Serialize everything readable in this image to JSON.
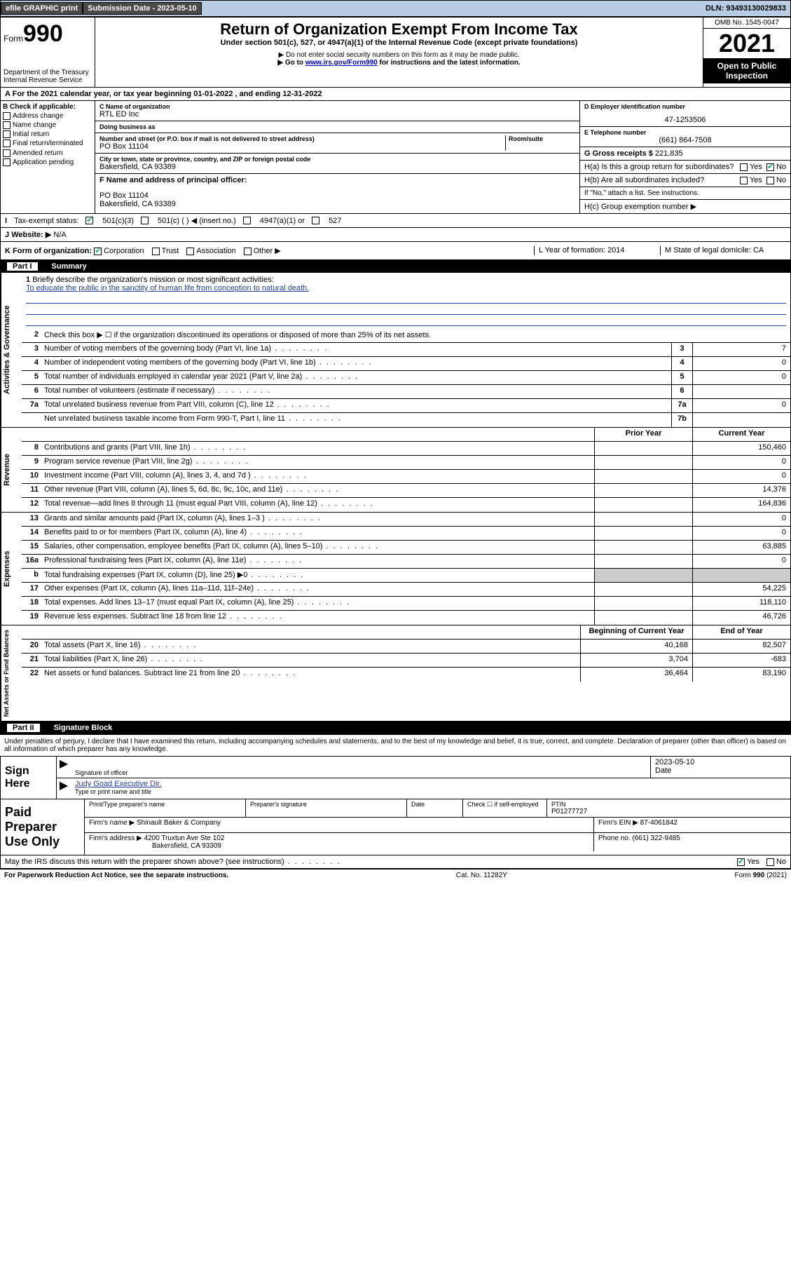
{
  "topbar": {
    "efile_label": "efile GRAPHIC print",
    "submission_label": "Submission Date - 2023-05-10",
    "dln_label": "DLN: 93493130029833"
  },
  "header": {
    "form_prefix": "Form",
    "form_number": "990",
    "dept": "Department of the Treasury",
    "irs": "Internal Revenue Service",
    "title": "Return of Organization Exempt From Income Tax",
    "subtitle": "Under section 501(c), 527, or 4947(a)(1) of the Internal Revenue Code (except private foundations)",
    "note1": "▶ Do not enter social security numbers on this form as it may be made public.",
    "note2_pre": "▶ Go to ",
    "note2_link": "www.irs.gov/Form990",
    "note2_post": " for instructions and the latest information.",
    "omb": "OMB No. 1545-0047",
    "year": "2021",
    "open_public": "Open to Public Inspection"
  },
  "row_a": {
    "text": "For the 2021 calendar year, or tax year beginning 01-01-2022   , and ending 12-31-2022"
  },
  "col_b": {
    "heading": "B Check if applicable:",
    "items": [
      "Address change",
      "Name change",
      "Initial return",
      "Final return/terminated",
      "Amended return",
      "Application pending"
    ]
  },
  "col_c": {
    "name_lbl": "C Name of organization",
    "name": "RTL ED Inc",
    "dba_lbl": "Doing business as",
    "dba": "",
    "addr_lbl": "Number and street (or P.O. box if mail is not delivered to street address)",
    "room_lbl": "Room/suite",
    "addr": "PO Box 11104",
    "city_lbl": "City or town, state or province, country, and ZIP or foreign postal code",
    "city": "Bakersfield, CA  93389",
    "f_lbl": "F Name and address of principal officer:",
    "f_addr1": "PO Box 11104",
    "f_addr2": "Bakersfield, CA  93389"
  },
  "col_de": {
    "d_lbl": "D Employer identification number",
    "ein": "47-1253506",
    "e_lbl": "E Telephone number",
    "phone": "(661) 864-7508",
    "g_lbl": "G Gross receipts $",
    "gross": "221,835",
    "ha_lbl": "H(a)  Is this a group return for subordinates?",
    "hb_lbl": "H(b)  Are all subordinates included?",
    "hb_note": "If \"No,\" attach a list. See instructions.",
    "hc_lbl": "H(c)  Group exemption number ▶",
    "yes": "Yes",
    "no": "No"
  },
  "row_i": {
    "lbl": "Tax-exempt status:",
    "c3": "501(c)(3)",
    "c_blank": "501(c) (   ) ◀ (insert no.)",
    "a1": "4947(a)(1) or",
    "s527": "527"
  },
  "row_j": {
    "lbl": "Website: ▶",
    "val": "N/A"
  },
  "row_k": {
    "k_lbl": "K Form of organization:",
    "corp": "Corporation",
    "trust": "Trust",
    "assoc": "Association",
    "other": "Other ▶",
    "l_lbl": "L Year of formation: 2014",
    "m_lbl": "M State of legal domicile: CA"
  },
  "parts": {
    "p1": "Part I",
    "p1_title": "Summary",
    "p2": "Part II",
    "p2_title": "Signature Block"
  },
  "summary": {
    "vtabs": [
      "Activities & Governance",
      "Revenue",
      "Expenses",
      "Net Assets or Fund Balances"
    ],
    "q1_lbl": "Briefly describe the organization's mission or most significant activities:",
    "q1_val": "To educate the public in the sanctity of human life from conception to natural death.",
    "q2_lbl": "Check this box ▶ ☐  if the organization discontinued its operations or disposed of more than 25% of its net assets.",
    "rows_gov": [
      {
        "n": "3",
        "lbl": "Number of voting members of the governing body (Part VI, line 1a)",
        "box": "3",
        "val": "7"
      },
      {
        "n": "4",
        "lbl": "Number of independent voting members of the governing body (Part VI, line 1b)",
        "box": "4",
        "val": "0"
      },
      {
        "n": "5",
        "lbl": "Total number of individuals employed in calendar year 2021 (Part V, line 2a)",
        "box": "5",
        "val": "0"
      },
      {
        "n": "6",
        "lbl": "Total number of volunteers (estimate if necessary)",
        "box": "6",
        "val": ""
      },
      {
        "n": "7a",
        "lbl": "Total unrelated business revenue from Part VIII, column (C), line 12",
        "box": "7a",
        "val": "0"
      },
      {
        "n": "",
        "lbl": "Net unrelated business taxable income from Form 990-T, Part I, line 11",
        "box": "7b",
        "val": ""
      }
    ],
    "col_hdr_prior": "Prior Year",
    "col_hdr_curr": "Current Year",
    "rows_rev": [
      {
        "n": "8",
        "lbl": "Contributions and grants (Part VIII, line 1h)",
        "prior": "",
        "curr": "150,460"
      },
      {
        "n": "9",
        "lbl": "Program service revenue (Part VIII, line 2g)",
        "prior": "",
        "curr": "0"
      },
      {
        "n": "10",
        "lbl": "Investment income (Part VIII, column (A), lines 3, 4, and 7d )",
        "prior": "",
        "curr": "0"
      },
      {
        "n": "11",
        "lbl": "Other revenue (Part VIII, column (A), lines 5, 6d, 8c, 9c, 10c, and 11e)",
        "prior": "",
        "curr": "14,376"
      },
      {
        "n": "12",
        "lbl": "Total revenue—add lines 8 through 11 (must equal Part VIII, column (A), line 12)",
        "prior": "",
        "curr": "164,836"
      }
    ],
    "rows_exp": [
      {
        "n": "13",
        "lbl": "Grants and similar amounts paid (Part IX, column (A), lines 1–3 )",
        "prior": "",
        "curr": "0"
      },
      {
        "n": "14",
        "lbl": "Benefits paid to or for members (Part IX, column (A), line 4)",
        "prior": "",
        "curr": "0"
      },
      {
        "n": "15",
        "lbl": "Salaries, other compensation, employee benefits (Part IX, column (A), lines 5–10)",
        "prior": "",
        "curr": "63,885"
      },
      {
        "n": "16a",
        "lbl": "Professional fundraising fees (Part IX, column (A), line 11e)",
        "prior": "",
        "curr": "0"
      },
      {
        "n": "b",
        "lbl": "Total fundraising expenses (Part IX, column (D), line 25) ▶0",
        "prior": "shade",
        "curr": "shade"
      },
      {
        "n": "17",
        "lbl": "Other expenses (Part IX, column (A), lines 11a–11d, 11f–24e)",
        "prior": "",
        "curr": "54,225"
      },
      {
        "n": "18",
        "lbl": "Total expenses. Add lines 13–17 (must equal Part IX, column (A), line 25)",
        "prior": "",
        "curr": "118,110"
      },
      {
        "n": "19",
        "lbl": "Revenue less expenses. Subtract line 18 from line 12",
        "prior": "",
        "curr": "46,726"
      }
    ],
    "col_hdr_begin": "Beginning of Current Year",
    "col_hdr_end": "End of Year",
    "rows_net": [
      {
        "n": "20",
        "lbl": "Total assets (Part X, line 16)",
        "prior": "40,168",
        "curr": "82,507"
      },
      {
        "n": "21",
        "lbl": "Total liabilities (Part X, line 26)",
        "prior": "3,704",
        "curr": "-683"
      },
      {
        "n": "22",
        "lbl": "Net assets or fund balances. Subtract line 21 from line 20",
        "prior": "36,464",
        "curr": "83,190"
      }
    ]
  },
  "sig": {
    "declaration": "Under penalties of perjury, I declare that I have examined this return, including accompanying schedules and statements, and to the best of my knowledge and belief, it is true, correct, and complete. Declaration of preparer (other than officer) is based on all information of which preparer has any knowledge.",
    "sign_here": "Sign Here",
    "sig_officer_lbl": "Signature of officer",
    "date_lbl": "Date",
    "date_val": "2023-05-10",
    "name_title": "Judy Goad  Executive Dir.",
    "name_title_lbl": "Type or print name and title"
  },
  "prep": {
    "title": "Paid Preparer Use Only",
    "pt_name_lbl": "Print/Type preparer's name",
    "pt_sig_lbl": "Preparer's signature",
    "date_lbl": "Date",
    "check_lbl": "Check ☐ if self-employed",
    "ptin_lbl": "PTIN",
    "ptin": "P01277727",
    "firm_name_lbl": "Firm's name    ▶",
    "firm_name": "Shinault Baker & Company",
    "firm_ein_lbl": "Firm's EIN ▶",
    "firm_ein": "87-4061842",
    "firm_addr_lbl": "Firm's address ▶",
    "firm_addr1": "4200 Truxtun Ave Ste 102",
    "firm_addr2": "Bakersfield, CA  93309",
    "phone_lbl": "Phone no.",
    "phone": "(661) 322-9485"
  },
  "footer": {
    "discuss": "May the IRS discuss this return with the preparer shown above? (see instructions)",
    "yes": "Yes",
    "no": "No",
    "paperwork": "For Paperwork Reduction Act Notice, see the separate instructions.",
    "cat": "Cat. No. 11282Y",
    "form": "Form 990 (2021)"
  }
}
